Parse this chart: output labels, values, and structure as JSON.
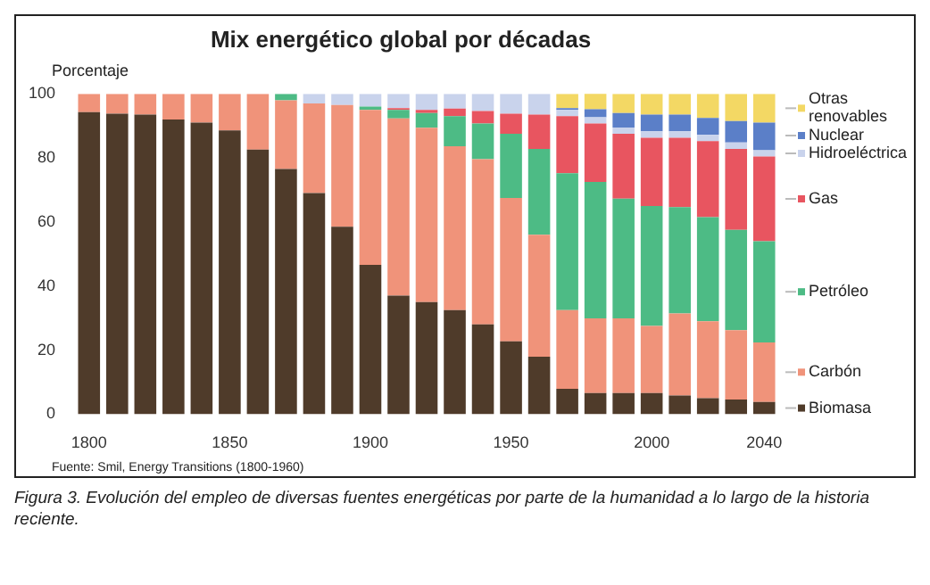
{
  "chart_data": {
    "type": "bar",
    "title": "Mix energético global por décadas",
    "ylabel": "Porcentaje",
    "categories": [
      "1800",
      null,
      null,
      null,
      null,
      "1850",
      null,
      null,
      null,
      null,
      "1900",
      null,
      null,
      null,
      null,
      "1950",
      null,
      null,
      null,
      null,
      "2000",
      null,
      null,
      null,
      "2040"
    ],
    "stacked": true,
    "ylim": [
      0,
      100
    ],
    "yticks": [
      0,
      20,
      40,
      60,
      80,
      100
    ],
    "legend": "right",
    "series": [
      {
        "name": "Biomasa",
        "color": "#4f3b2a",
        "values": [
          94.3,
          93.8,
          93.5,
          92,
          91,
          88.6,
          82.6,
          76.5,
          69,
          58.5,
          46.6,
          37,
          35,
          32.5,
          28,
          22.7,
          17.9,
          7.9,
          6.6,
          6.6,
          6.6,
          5.8,
          5,
          4.6,
          3.8
        ]
      },
      {
        "name": "Carbón",
        "color": "#f0937a",
        "values": [
          5.7,
          6.2,
          6.5,
          8,
          9,
          11.4,
          17.4,
          21.5,
          28,
          38,
          48.4,
          55.3,
          54.4,
          51.1,
          51.6,
          44.8,
          38.1,
          24.6,
          23.3,
          23.3,
          20.9,
          25.6,
          24,
          21.6,
          18.6
        ]
      },
      {
        "name": "Petróleo",
        "color": "#4dbb85",
        "values": [
          0,
          0,
          0,
          0,
          0,
          0,
          0,
          2,
          0,
          0,
          1,
          2.7,
          4.6,
          9.4,
          11.1,
          20,
          26.8,
          42.7,
          42.6,
          37.4,
          37.5,
          33.2,
          32.5,
          31.3,
          31.6
        ]
      },
      {
        "name": "Gas",
        "color": "#e85560",
        "values": [
          0,
          0,
          0,
          0,
          0,
          0,
          0,
          0,
          0,
          0,
          0,
          0.5,
          1,
          2.4,
          3.9,
          6.3,
          10.7,
          17.8,
          18.2,
          20.2,
          21.3,
          21.7,
          23.7,
          25.3,
          26.4
        ]
      },
      {
        "name": "Hidroeléctrica",
        "color": "#c9d3ec",
        "values": [
          0,
          0,
          0,
          0,
          0,
          0,
          0,
          0,
          3,
          3.5,
          4,
          4.5,
          5,
          4.6,
          5.4,
          6.2,
          6.5,
          2,
          2,
          2,
          2,
          2,
          2,
          2,
          2
        ]
      },
      {
        "name": "Nuclear",
        "color": "#5b7fc8",
        "values": [
          0,
          0,
          0,
          0,
          0,
          0,
          0,
          0,
          0,
          0,
          0,
          0,
          0,
          0,
          0,
          0,
          0,
          0.5,
          2.5,
          4.5,
          5.2,
          5.2,
          5.3,
          6.7,
          8.6
        ]
      },
      {
        "name": "Otras renovables",
        "color": "#f3d864",
        "values": [
          0,
          0,
          0,
          0,
          0,
          0,
          0,
          0,
          0,
          0,
          0,
          0,
          0,
          0,
          0,
          0,
          0,
          4.5,
          5,
          6,
          6.5,
          6.5,
          7.5,
          8.5,
          9
        ]
      }
    ],
    "annotations": [
      "Fuente: Smil, Energy Transitions (1800-1960)",
      "Figura 3. Evolución del empleo de diversas fuentes energéticas por parte de la humanidad a lo largo de la historia reciente."
    ]
  }
}
